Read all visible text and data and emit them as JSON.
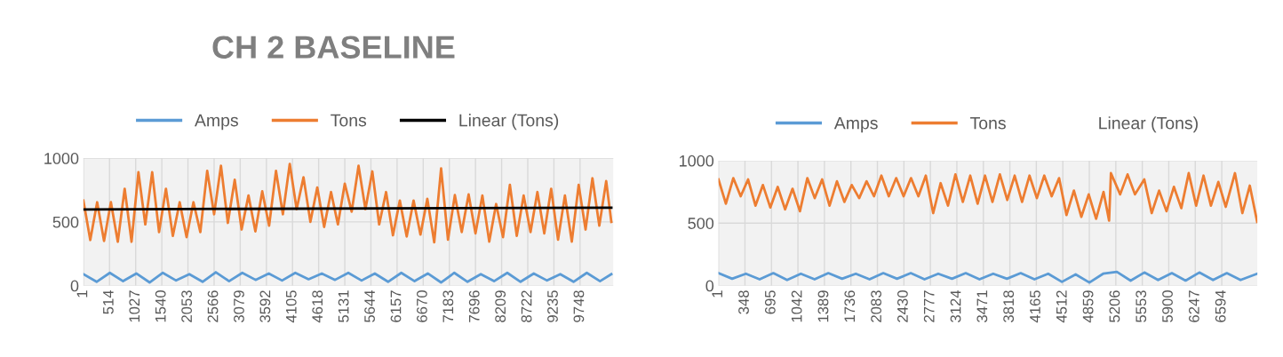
{
  "chart_data": [
    {
      "type": "line",
      "title": "CH 2 BASELINE",
      "legend": "top",
      "grid": true,
      "xlim": [
        1,
        10400
      ],
      "ylim": [
        0,
        1000
      ],
      "yticks": [
        0,
        500,
        1000
      ],
      "xticks": [
        1,
        514,
        1027,
        1540,
        2053,
        2566,
        3079,
        3592,
        4105,
        4618,
        5131,
        5644,
        6157,
        6670,
        7183,
        7696,
        8209,
        8722,
        9235,
        9748
      ],
      "series": [
        {
          "name": "Amps",
          "color": "#5b9bd5",
          "x": [
            1,
            260,
            520,
            780,
            1040,
            1300,
            1560,
            1820,
            2080,
            2340,
            2600,
            2860,
            3120,
            3380,
            3640,
            3900,
            4160,
            4420,
            4680,
            4940,
            5200,
            5460,
            5720,
            5980,
            6240,
            6500,
            6760,
            7020,
            7280,
            7540,
            7800,
            8060,
            8320,
            8580,
            8840,
            9100,
            9360,
            9620,
            9880,
            10140,
            10362
          ],
          "values": [
            90,
            30,
            100,
            35,
            95,
            25,
            100,
            40,
            90,
            30,
            105,
            35,
            100,
            45,
            95,
            40,
            100,
            50,
            95,
            45,
            100,
            40,
            95,
            30,
            100,
            35,
            95,
            25,
            100,
            30,
            90,
            35,
            100,
            30,
            95,
            40,
            90,
            30,
            100,
            35,
            90
          ]
        },
        {
          "name": "Tons",
          "color": "#ed7d31",
          "x": [
            1,
            136,
            271,
            406,
            541,
            676,
            811,
            946,
            1081,
            1216,
            1351,
            1486,
            1621,
            1756,
            1891,
            2026,
            2161,
            2296,
            2431,
            2566,
            2701,
            2836,
            2971,
            3106,
            3241,
            3376,
            3511,
            3646,
            3781,
            3916,
            4051,
            4186,
            4321,
            4456,
            4591,
            4726,
            4861,
            4996,
            5131,
            5266,
            5401,
            5536,
            5671,
            5806,
            5941,
            6076,
            6211,
            6346,
            6481,
            6616,
            6751,
            6886,
            7021,
            7156,
            7291,
            7426,
            7561,
            7696,
            7831,
            7966,
            8101,
            8236,
            8371,
            8506,
            8641,
            8776,
            8911,
            9046,
            9181,
            9316,
            9451,
            9586,
            9721,
            9856,
            9991,
            10126,
            10261,
            10362
          ],
          "values": [
            667,
            358,
            654,
            350,
            654,
            344,
            760,
            344,
            890,
            480,
            890,
            420,
            760,
            390,
            654,
            380,
            654,
            420,
            900,
            560,
            940,
            492,
            830,
            440,
            707,
            425,
            740,
            470,
            900,
            560,
            955,
            600,
            850,
            500,
            770,
            460,
            734,
            480,
            800,
            580,
            940,
            600,
            896,
            480,
            734,
            395,
            667,
            385,
            667,
            400,
            681,
            340,
            920,
            360,
            710,
            420,
            715,
            410,
            707,
            345,
            640,
            380,
            790,
            390,
            707,
            420,
            734,
            410,
            760,
            360,
            707,
            345,
            790,
            440,
            842,
            470,
            820,
            500
          ]
        },
        {
          "name": "Linear (Tons)",
          "color": "#000000",
          "x": [
            1,
            10362
          ],
          "values": [
            598,
            612
          ]
        }
      ]
    },
    {
      "type": "line",
      "legend": "top",
      "grid": true,
      "xlim": [
        1,
        7060
      ],
      "ylim": [
        0,
        1000
      ],
      "yticks": [
        0,
        500,
        1000
      ],
      "xticks": [
        1,
        348,
        695,
        1042,
        1389,
        1736,
        2083,
        2430,
        2777,
        3124,
        3471,
        3818,
        4165,
        4512,
        4859,
        5206,
        5553,
        5900,
        6247,
        6594
      ],
      "series": [
        {
          "name": "Amps",
          "color": "#5b9bd5",
          "x": [
            1,
            180,
            360,
            540,
            720,
            900,
            1080,
            1260,
            1440,
            1620,
            1800,
            1980,
            2160,
            2340,
            2520,
            2700,
            2880,
            3060,
            3240,
            3420,
            3600,
            3780,
            3960,
            4140,
            4320,
            4500,
            4680,
            4860,
            5040,
            5220,
            5400,
            5580,
            5760,
            5940,
            6120,
            6300,
            6480,
            6660,
            6840,
            7058
          ],
          "values": [
            100,
            55,
            95,
            50,
            100,
            45,
            95,
            50,
            100,
            55,
            95,
            50,
            100,
            55,
            100,
            50,
            95,
            55,
            100,
            50,
            95,
            55,
            100,
            50,
            95,
            30,
            90,
            25,
            95,
            110,
            40,
            105,
            45,
            100,
            40,
            105,
            45,
            100,
            45,
            95
          ]
        },
        {
          "name": "Tons",
          "color": "#ed7d31",
          "x": [
            1,
            98,
            195,
            292,
            389,
            486,
            583,
            680,
            777,
            874,
            971,
            1068,
            1165,
            1262,
            1359,
            1456,
            1553,
            1650,
            1747,
            1844,
            1941,
            2038,
            2135,
            2232,
            2329,
            2426,
            2523,
            2620,
            2717,
            2814,
            2911,
            3008,
            3105,
            3202,
            3299,
            3396,
            3493,
            3590,
            3687,
            3784,
            3881,
            3978,
            4075,
            4172,
            4269,
            4366,
            4463,
            4560,
            4657,
            4754,
            4851,
            4948,
            5045,
            5118,
            5142,
            5263,
            5360,
            5457,
            5579,
            5676,
            5773,
            5870,
            5967,
            6064,
            6161,
            6258,
            6355,
            6452,
            6549,
            6646,
            6767,
            6864,
            6961,
            7058
          ],
          "values": [
            850,
            655,
            860,
            715,
            850,
            640,
            805,
            625,
            790,
            610,
            775,
            595,
            860,
            700,
            850,
            640,
            835,
            670,
            805,
            700,
            835,
            715,
            880,
            715,
            860,
            715,
            860,
            715,
            880,
            580,
            820,
            640,
            890,
            670,
            880,
            655,
            880,
            670,
            890,
            685,
            880,
            670,
            880,
            700,
            880,
            715,
            860,
            565,
            760,
            550,
            730,
            535,
            750,
            520,
            900,
            730,
            890,
            730,
            850,
            580,
            760,
            595,
            790,
            620,
            900,
            640,
            880,
            640,
            830,
            630,
            900,
            580,
            800,
            510
          ]
        },
        {
          "name": "Linear (Tons)",
          "color": null
        }
      ]
    }
  ]
}
